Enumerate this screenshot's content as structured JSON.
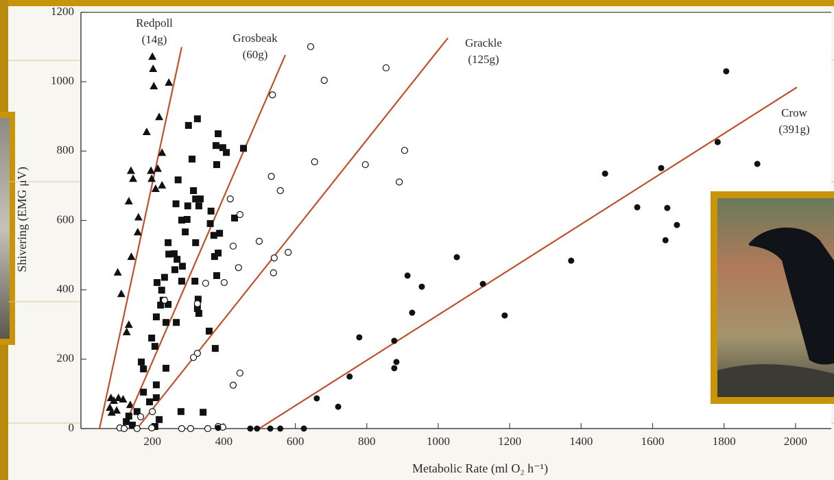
{
  "chart_data": {
    "type": "scatter",
    "x_label": "Metabolic Rate (ml O₂ h⁻¹)",
    "y_label": "Shivering (EMG μV)",
    "xlim": [
      0,
      2100
    ],
    "ylim": [
      0,
      1200
    ],
    "xticks": [
      200,
      400,
      600,
      800,
      1000,
      1200,
      1400,
      1600,
      1800,
      2000
    ],
    "yticks": [
      0,
      200,
      400,
      600,
      800,
      1000,
      1200
    ],
    "fit_color": "#c0502a",
    "series": [
      {
        "name": "Redpoll",
        "weight": "(14g)",
        "marker": "triangle",
        "color": "#111111",
        "x": [
          200,
          202,
          246,
          204,
          219,
          184,
          227,
          140,
          146,
          196,
          215,
          198,
          227,
          209,
          161,
          134,
          159,
          141,
          103,
          113,
          134,
          128,
          84,
          105,
          118,
          92,
          81,
          86,
          138,
          100
        ],
        "y": [
          1073,
          1038,
          998,
          988,
          899,
          856,
          796,
          744,
          721,
          744,
          750,
          721,
          702,
          692,
          610,
          656,
          567,
          496,
          451,
          389,
          300,
          279,
          89,
          89,
          85,
          81,
          61,
          47,
          69,
          53
        ],
        "fit": {
          "x": [
            52,
            282
          ],
          "y": [
            0,
            1100
          ]
        }
      },
      {
        "name": "Grosbeak",
        "weight": "(60g)",
        "marker": "square",
        "color": "#111111",
        "x": [
          301,
          326,
          384,
          455,
          378,
          397,
          407,
          380,
          311,
          272,
          315,
          321,
          334,
          266,
          299,
          330,
          297,
          364,
          430,
          282,
          362,
          292,
          388,
          244,
          372,
          321,
          384,
          246,
          261,
          269,
          284,
          263,
          374,
          234,
          213,
          282,
          319,
          380,
          226,
          328,
          230,
          223,
          244,
          326,
          330,
          211,
          267,
          238,
          198,
          359,
          207,
          376,
          169,
          175,
          238,
          211,
          175,
          211,
          192,
          157,
          134,
          127,
          219,
          280,
          342,
          207,
          144
        ],
        "y": [
          874,
          893,
          850,
          808,
          816,
          810,
          796,
          761,
          777,
          717,
          686,
          662,
          662,
          648,
          642,
          642,
          603,
          627,
          607,
          601,
          591,
          567,
          563,
          536,
          557,
          536,
          506,
          503,
          504,
          488,
          468,
          458,
          496,
          436,
          421,
          425,
          425,
          441,
          399,
          373,
          370,
          356,
          358,
          346,
          332,
          322,
          306,
          306,
          261,
          281,
          237,
          231,
          192,
          172,
          174,
          126,
          105,
          89,
          77,
          49,
          36,
          20,
          26,
          49,
          47,
          6,
          10
        ],
        "fit": {
          "x": [
            119,
            572
          ],
          "y": [
            0,
            1077
          ]
        }
      },
      {
        "name": "Grackle",
        "weight": "(125g)",
        "marker": "open-circle",
        "color": "#111111",
        "x": [
          643,
          854,
          681,
          536,
          906,
          654,
          796,
          533,
          558,
          891,
          418,
          445,
          499,
          580,
          541,
          441,
          539,
          349,
          401,
          234,
          326,
          426,
          326,
          315,
          445,
          426,
          200,
          167,
          109,
          121,
          157,
          198,
          282,
          307,
          355,
          384,
          397
        ],
        "y": [
          1101,
          1040,
          1004,
          962,
          802,
          769,
          761,
          727,
          686,
          711,
          662,
          617,
          540,
          508,
          492,
          464,
          449,
          419,
          421,
          370,
          360,
          526,
          217,
          205,
          160,
          125,
          49,
          34,
          2,
          0,
          0,
          2,
          0,
          0,
          0,
          6,
          4
        ],
        "fit": {
          "x": [
            157,
            1027
          ],
          "y": [
            0,
            1126
          ]
        }
      },
      {
        "name": "Crow",
        "weight": "(391g)",
        "marker": "circle",
        "color": "#111111",
        "x": [
          1806,
          1782,
          1893,
          1624,
          1467,
          1641,
          1557,
          1668,
          1636,
          1372,
          1052,
          914,
          954,
          1125,
          1186,
          927,
          779,
          877,
          883,
          877,
          752,
          660,
          720,
          384,
          474,
          493,
          530,
          558,
          624
        ],
        "y": [
          1030,
          826,
          763,
          751,
          735,
          636,
          638,
          587,
          543,
          484,
          494,
          441,
          409,
          417,
          326,
          334,
          263,
          253,
          192,
          174,
          150,
          87,
          63,
          2,
          0,
          0,
          0,
          0,
          0
        ],
        "fit": {
          "x": [
            499,
            2004
          ],
          "y": [
            0,
            984
          ]
        }
      }
    ]
  }
}
